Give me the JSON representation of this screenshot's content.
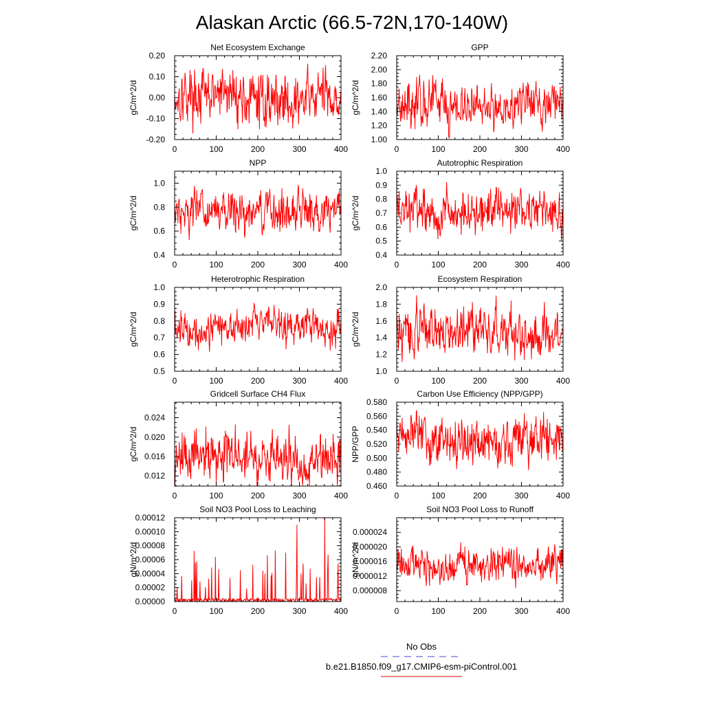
{
  "title": "Alaskan Arctic (66.5-72N,170-140W)",
  "legend": {
    "entries": [
      {
        "label": "No Obs",
        "color": "#4444dd",
        "style": "dashed"
      },
      {
        "label": "b.e21.B1850.f09_g17.CMIP6-esm-piControl.001",
        "color": "#dd0000",
        "style": "solid"
      }
    ]
  },
  "series_color": "#ff0000",
  "chart_data": [
    {
      "type": "line",
      "title": "Net Ecosystem Exchange",
      "ylabel": "gC/m^2/d",
      "xlim": [
        0,
        400
      ],
      "ylim": [
        -0.2,
        0.2
      ],
      "xticks": [
        0,
        100,
        200,
        300,
        400
      ],
      "yticks": [
        -0.2,
        -0.1,
        0.0,
        0.1,
        0.2
      ],
      "ytick_labels": [
        "-0.20",
        "-0.10",
        "0.00",
        "0.10",
        "0.20"
      ],
      "series_mean": 0.0,
      "series_amplitude": 0.065
    },
    {
      "type": "line",
      "title": "GPP",
      "ylabel": "gC/m^2/d",
      "xlim": [
        0,
        400
      ],
      "ylim": [
        1.0,
        2.2
      ],
      "xticks": [
        0,
        100,
        200,
        300,
        400
      ],
      "yticks": [
        1.0,
        1.2,
        1.4,
        1.6,
        1.8,
        2.0,
        2.2
      ],
      "ytick_labels": [
        "1.00",
        "1.20",
        "1.40",
        "1.60",
        "1.80",
        "2.00",
        "2.20"
      ],
      "series_mean": 1.5,
      "series_amplitude": 0.17
    },
    {
      "type": "line",
      "title": "NPP",
      "ylabel": "gC/m^2/d",
      "xlim": [
        0,
        400
      ],
      "ylim": [
        0.4,
        1.1
      ],
      "xticks": [
        0,
        100,
        200,
        300,
        400
      ],
      "yticks": [
        0.4,
        0.6,
        0.8,
        1.0
      ],
      "ytick_labels": [
        "0.4",
        "0.6",
        "0.8",
        "1.0"
      ],
      "series_mean": 0.77,
      "series_amplitude": 0.09
    },
    {
      "type": "line",
      "title": "Autotrophic Respiration",
      "ylabel": "gC/m^2/d",
      "xlim": [
        0,
        400
      ],
      "ylim": [
        0.4,
        1.0
      ],
      "xticks": [
        0,
        100,
        200,
        300,
        400
      ],
      "yticks": [
        0.4,
        0.5,
        0.6,
        0.7,
        0.8,
        0.9,
        1.0
      ],
      "ytick_labels": [
        "0.4",
        "0.5",
        "0.6",
        "0.7",
        "0.8",
        "0.9",
        "1.0"
      ],
      "series_mean": 0.72,
      "series_amplitude": 0.08
    },
    {
      "type": "line",
      "title": "Heterotrophic Respiration",
      "ylabel": "gC/m^2/d",
      "xlim": [
        0,
        400
      ],
      "ylim": [
        0.5,
        1.0
      ],
      "xticks": [
        0,
        100,
        200,
        300,
        400
      ],
      "yticks": [
        0.5,
        0.6,
        0.7,
        0.8,
        0.9,
        1.0
      ],
      "ytick_labels": [
        "0.5",
        "0.6",
        "0.7",
        "0.8",
        "0.9",
        "1.0"
      ],
      "series_mean": 0.77,
      "series_amplitude": 0.055
    },
    {
      "type": "line",
      "title": "Ecosystem Respiration",
      "ylabel": "gC/m^2/d",
      "xlim": [
        0,
        400
      ],
      "ylim": [
        1.0,
        2.0
      ],
      "xticks": [
        0,
        100,
        200,
        300,
        400
      ],
      "yticks": [
        1.0,
        1.2,
        1.4,
        1.6,
        1.8,
        2.0
      ],
      "ytick_labels": [
        "1.0",
        "1.2",
        "1.4",
        "1.6",
        "1.8",
        "2.0"
      ],
      "series_mean": 1.48,
      "series_amplitude": 0.15
    },
    {
      "type": "line",
      "title": "Gridcell Surface CH4 Flux",
      "ylabel": "gC/m^2/d",
      "xlim": [
        0,
        400
      ],
      "ylim": [
        0.0099,
        0.0272
      ],
      "xticks": [
        0,
        100,
        200,
        300,
        400
      ],
      "yticks": [
        0.012,
        0.016,
        0.02,
        0.024
      ],
      "ytick_labels": [
        "0.012",
        "0.016",
        "0.020",
        "0.024"
      ],
      "series_mean": 0.0155,
      "series_amplitude": 0.0028
    },
    {
      "type": "line",
      "title": "Carbon Use Efficiency (NPP/GPP)",
      "ylabel": "NPP/GPP",
      "xlim": [
        0,
        400
      ],
      "ylim": [
        0.46,
        0.58
      ],
      "xticks": [
        0,
        100,
        200,
        300,
        400
      ],
      "yticks": [
        0.46,
        0.48,
        0.5,
        0.52,
        0.54,
        0.56,
        0.58
      ],
      "ytick_labels": [
        "0.460",
        "0.480",
        "0.500",
        "0.520",
        "0.540",
        "0.560",
        "0.580"
      ],
      "series_mean": 0.525,
      "series_amplitude": 0.017
    },
    {
      "type": "line",
      "title": "Soil NO3 Pool Loss to Leaching",
      "ylabel": "gN/m^2/d",
      "xlim": [
        0,
        400
      ],
      "ylim": [
        0.0,
        0.00012
      ],
      "xticks": [
        0,
        100,
        200,
        300,
        400
      ],
      "yticks": [
        0.0,
        2e-05,
        4e-05,
        6e-05,
        8e-05,
        0.0001,
        0.00012
      ],
      "ytick_labels": [
        "0.00000",
        "0.00002",
        "0.00004",
        "0.00006",
        "0.00008",
        "0.00010",
        "0.00012"
      ],
      "series_mean": 1.2e-05,
      "series_amplitude": 1.8e-05
    },
    {
      "type": "line",
      "title": "Soil NO3 Pool Loss to Runoff",
      "ylabel": "gN/m^2/d",
      "xlim": [
        0,
        400
      ],
      "ylim": [
        5e-06,
        2.8e-05
      ],
      "xticks": [
        0,
        100,
        200,
        300,
        400
      ],
      "yticks": [
        8e-06,
        1.2e-05,
        1.6e-05,
        2e-05,
        2.4e-05
      ],
      "ytick_labels": [
        "0.000008",
        "0.000012",
        "0.000016",
        "0.000020",
        "0.000024"
      ],
      "series_mean": 1.5e-05,
      "series_amplitude": 2.5e-06
    }
  ]
}
